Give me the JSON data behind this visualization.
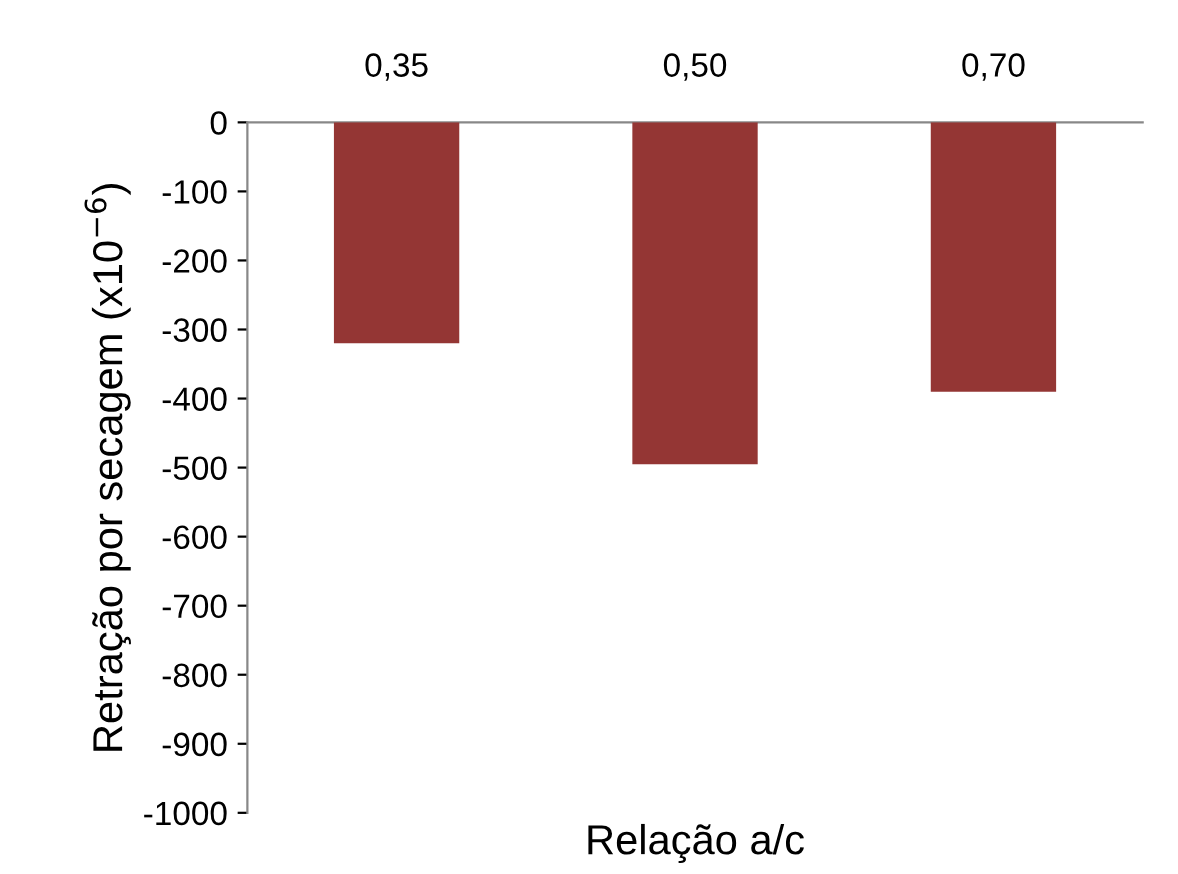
{
  "chart_data": {
    "type": "bar",
    "xlabel": "Relação a/c",
    "ylabel": "Retração por secagem (x10$^{−6}$)",
    "categories": [
      "0,35",
      "0,50",
      "0,70"
    ],
    "values": [
      -320,
      -495,
      -390
    ],
    "color": "#943634",
    "ylim": [
      -1000,
      0
    ],
    "yticks": [
      0,
      -100,
      -200,
      -300,
      -400,
      -500,
      -600,
      -700,
      -800,
      -900,
      -1000
    ],
    "grid": false
  }
}
